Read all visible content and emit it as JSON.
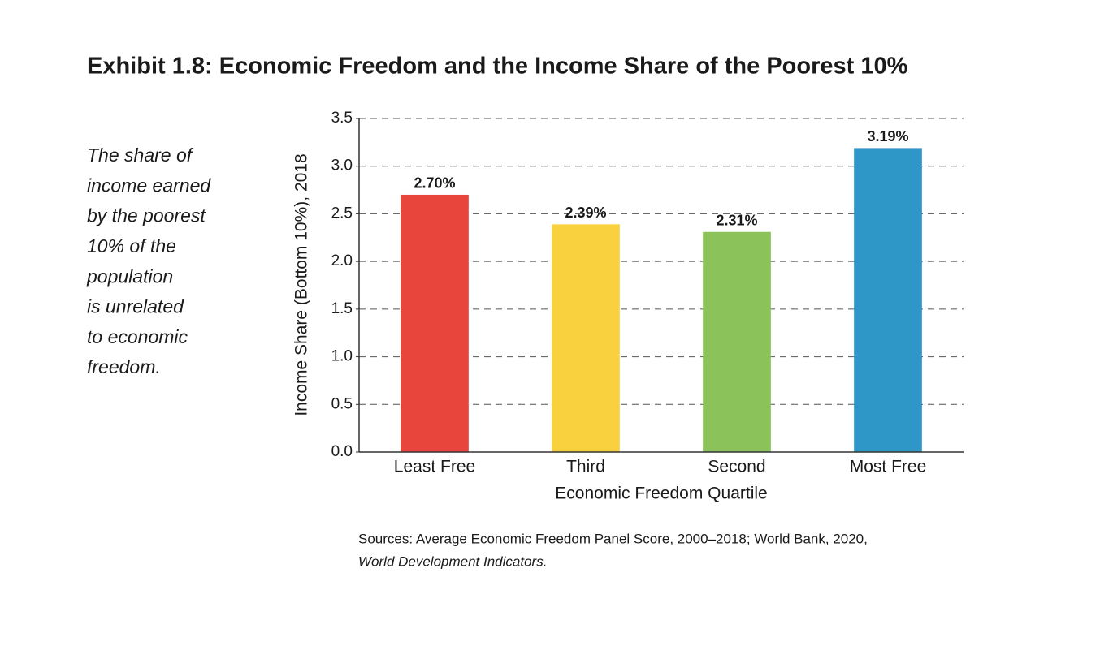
{
  "chart_data": {
    "type": "bar",
    "title": "Exhibit 1.8: Economic Freedom and the Income Share of the Poorest 10%",
    "note": [
      "The share of",
      "income earned",
      "by the poorest",
      "10% of the",
      "population",
      "is unrelated",
      "to economic",
      "freedom."
    ],
    "y_label": "Income Share (Bottom 10%), 2018",
    "x_label": "Economic Freedom Quartile",
    "categories": [
      "Least Free",
      "Third",
      "Second",
      "Most Free"
    ],
    "values": [
      2.7,
      2.39,
      2.31,
      3.19
    ],
    "value_labels": [
      "2.70%",
      "2.39%",
      "2.31%",
      "3.19%"
    ],
    "colors": [
      "#e8453c",
      "#f9d13e",
      "#8bc35a",
      "#2f96c8"
    ],
    "ylim": [
      0,
      3.5
    ],
    "yticks": [
      {
        "value": 0,
        "label": "0.0"
      },
      0.5,
      {
        "value": 1,
        "label": "1.0"
      },
      1.5,
      {
        "value": 2,
        "label": "2.0"
      },
      2.5,
      {
        "value": 3,
        "label": "3.0"
      },
      3.5
    ],
    "grid": true,
    "source": [
      "Sources: Average Economic Freedom Panel Score, 2000–2018; World Bank, 2020,",
      "World Development Indicators."
    ]
  }
}
